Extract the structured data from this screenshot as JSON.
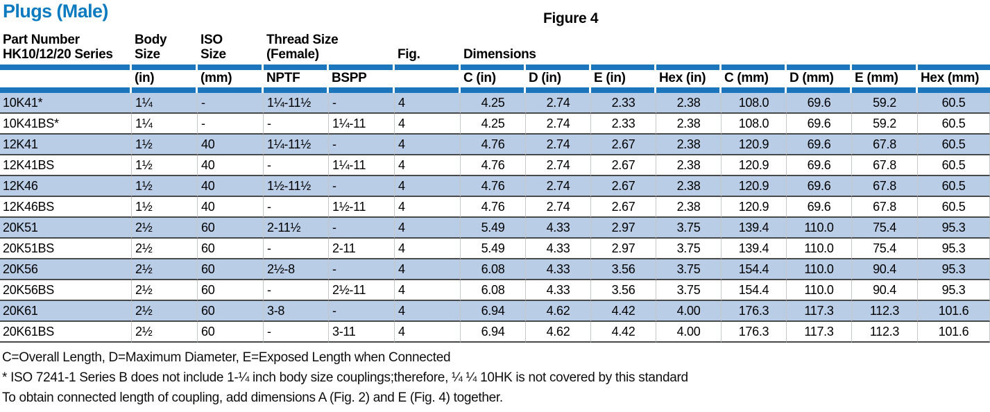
{
  "page": {
    "title": "Plugs (Male)",
    "figure_label": "Figure 4"
  },
  "colors": {
    "title_blue": "#0c7bc0",
    "divider_bar_blue": "#1c76bc",
    "shaded_row_blue": "#b9cde7",
    "row_separator_dark": "#46484a",
    "column_line_light": "#c5c8cb"
  },
  "table": {
    "header_groups": {
      "part_number": "Part Number\nHK10/12/20 Series",
      "body_size": "Body\nSize",
      "iso_size": "ISO\nSize",
      "thread_size": "Thread Size\n(Female)",
      "fig": "Fig.",
      "dimensions": "Dimensions"
    },
    "subheaders": [
      "",
      "(in)",
      "(mm)",
      "NPTF",
      "BSPP",
      "",
      "C (in)",
      "D (in)",
      "E (in)",
      "Hex (in)",
      "C (mm)",
      "D (mm)",
      "E (mm)",
      "Hex (mm)"
    ],
    "rows": [
      {
        "cells": [
          "10K41*",
          "1¼",
          "-",
          "1¼-11½",
          "-",
          "4",
          "4.25",
          "2.74",
          "2.33",
          "2.38",
          "108.0",
          "69.6",
          "59.2",
          "60.5"
        ]
      },
      {
        "cells": [
          "10K41BS*",
          "1¼",
          "-",
          "-",
          "1¼-11",
          "4",
          "4.25",
          "2.74",
          "2.33",
          "2.38",
          "108.0",
          "69.6",
          "59.2",
          "60.5"
        ]
      },
      {
        "cells": [
          "12K41",
          "1½",
          "40",
          "1¼-11½",
          "-",
          "4",
          "4.76",
          "2.74",
          "2.67",
          "2.38",
          "120.9",
          "69.6",
          "67.8",
          "60.5"
        ]
      },
      {
        "cells": [
          "12K41BS",
          "1½",
          "40",
          "-",
          "1¼-11",
          "4",
          "4.76",
          "2.74",
          "2.67",
          "2.38",
          "120.9",
          "69.6",
          "67.8",
          "60.5"
        ]
      },
      {
        "cells": [
          "12K46",
          "1½",
          "40",
          "1½-11½",
          "-",
          "4",
          "4.76",
          "2.74",
          "2.67",
          "2.38",
          "120.9",
          "69.6",
          "67.8",
          "60.5"
        ]
      },
      {
        "cells": [
          "12K46BS",
          "1½",
          "40",
          "-",
          "1½-11",
          "4",
          "4.76",
          "2.74",
          "2.67",
          "2.38",
          "120.9",
          "69.6",
          "67.8",
          "60.5"
        ]
      },
      {
        "cells": [
          "20K51",
          "2½",
          "60",
          "2-11½",
          "-",
          "4",
          "5.49",
          "4.33",
          "2.97",
          "3.75",
          "139.4",
          "110.0",
          "75.4",
          "95.3"
        ]
      },
      {
        "cells": [
          "20K51BS",
          "2½",
          "60",
          "-",
          "2-11",
          "4",
          "5.49",
          "4.33",
          "2.97",
          "3.75",
          "139.4",
          "110.0",
          "75.4",
          "95.3"
        ]
      },
      {
        "cells": [
          "20K56",
          "2½",
          "60",
          "2½-8",
          "-",
          "4",
          "6.08",
          "4.33",
          "3.56",
          "3.75",
          "154.4",
          "110.0",
          "90.4",
          "95.3"
        ]
      },
      {
        "cells": [
          "20K56BS",
          "2½",
          "60",
          "-",
          "2½-11",
          "4",
          "6.08",
          "4.33",
          "3.56",
          "3.75",
          "154.4",
          "110.0",
          "90.4",
          "95.3"
        ]
      },
      {
        "cells": [
          "20K61",
          "2½",
          "60",
          "3-8",
          "-",
          "4",
          "6.94",
          "4.62",
          "4.42",
          "4.00",
          "176.3",
          "117.3",
          "112.3",
          "101.6"
        ]
      },
      {
        "cells": [
          "20K61BS",
          "2½",
          "60",
          "-",
          "3-11",
          "4",
          "6.94",
          "4.62",
          "4.42",
          "4.00",
          "176.3",
          "117.3",
          "112.3",
          "101.6"
        ]
      }
    ]
  },
  "notes": [
    "C=Overall Length, D=Maximum Diameter, E=Exposed Length when Connected",
    "* ISO 7241-1 Series B does not include 1-¼ inch body size couplings;therefore, ¼ ¼ 10HK is not covered by this standard",
    "To obtain connected length of coupling, add dimensions A (Fig. 2) and E (Fig. 4) together."
  ]
}
